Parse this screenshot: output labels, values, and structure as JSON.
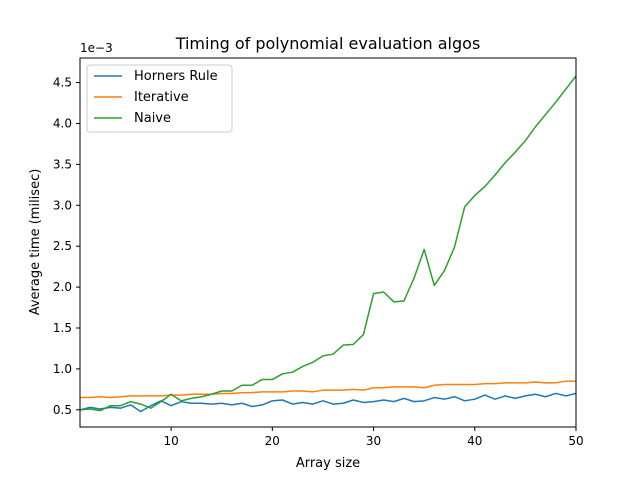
{
  "chart_data": {
    "type": "line",
    "title": "Timing of polynomial evaluation algos",
    "xlabel": "Array size",
    "ylabel": "Average time (milisec)",
    "y_offset_label": "1e−3",
    "xlim": [
      1,
      50
    ],
    "ylim": [
      0.29,
      4.8
    ],
    "y_scale_exponent": -3,
    "x_ticks": [
      10,
      20,
      30,
      40,
      50
    ],
    "y_ticks": [
      0.5,
      1.0,
      1.5,
      2.0,
      2.5,
      3.0,
      3.5,
      4.0,
      4.5
    ],
    "x_tick_labels": [
      "10",
      "20",
      "30",
      "40",
      "50"
    ],
    "y_tick_labels": [
      "0.5",
      "1.0",
      "1.5",
      "2.0",
      "2.5",
      "3.0",
      "3.5",
      "4.0",
      "4.5"
    ],
    "legend_position": "top-left",
    "grid": false,
    "x": [
      1,
      2,
      3,
      4,
      5,
      6,
      7,
      8,
      9,
      10,
      11,
      12,
      13,
      14,
      15,
      16,
      17,
      18,
      19,
      20,
      21,
      22,
      23,
      24,
      25,
      26,
      27,
      28,
      29,
      30,
      31,
      32,
      33,
      34,
      35,
      36,
      37,
      38,
      39,
      40,
      41,
      42,
      43,
      44,
      45,
      46,
      47,
      48,
      49,
      50
    ],
    "series": [
      {
        "name": "Horners Rule",
        "color": "#1f77b4",
        "values": [
          0.5,
          0.53,
          0.51,
          0.53,
          0.52,
          0.56,
          0.48,
          0.55,
          0.61,
          0.55,
          0.6,
          0.58,
          0.58,
          0.57,
          0.58,
          0.56,
          0.58,
          0.54,
          0.56,
          0.61,
          0.62,
          0.57,
          0.59,
          0.57,
          0.61,
          0.57,
          0.58,
          0.62,
          0.59,
          0.6,
          0.62,
          0.6,
          0.64,
          0.6,
          0.61,
          0.65,
          0.63,
          0.66,
          0.61,
          0.63,
          0.68,
          0.63,
          0.67,
          0.64,
          0.67,
          0.69,
          0.66,
          0.7,
          0.67,
          0.7
        ]
      },
      {
        "name": "Iterative",
        "color": "#ff7f0e",
        "values": [
          0.65,
          0.65,
          0.66,
          0.65,
          0.66,
          0.67,
          0.67,
          0.67,
          0.67,
          0.68,
          0.68,
          0.69,
          0.69,
          0.69,
          0.7,
          0.7,
          0.71,
          0.71,
          0.72,
          0.72,
          0.72,
          0.73,
          0.73,
          0.72,
          0.74,
          0.74,
          0.74,
          0.75,
          0.74,
          0.77,
          0.77,
          0.78,
          0.78,
          0.78,
          0.77,
          0.8,
          0.81,
          0.81,
          0.81,
          0.81,
          0.82,
          0.82,
          0.83,
          0.83,
          0.83,
          0.84,
          0.83,
          0.83,
          0.85,
          0.85
        ]
      },
      {
        "name": "Naive",
        "color": "#2ca02c",
        "values": [
          0.5,
          0.51,
          0.49,
          0.55,
          0.55,
          0.6,
          0.57,
          0.52,
          0.6,
          0.69,
          0.61,
          0.64,
          0.66,
          0.69,
          0.73,
          0.73,
          0.8,
          0.8,
          0.87,
          0.87,
          0.94,
          0.96,
          1.03,
          1.08,
          1.16,
          1.18,
          1.29,
          1.3,
          1.42,
          1.92,
          1.94,
          1.82,
          1.83,
          2.11,
          2.46,
          2.02,
          2.2,
          2.49,
          2.98,
          3.12,
          3.23,
          3.37,
          3.52,
          3.65,
          3.79,
          3.96,
          4.11,
          4.26,
          4.42,
          4.58
        ]
      }
    ]
  }
}
